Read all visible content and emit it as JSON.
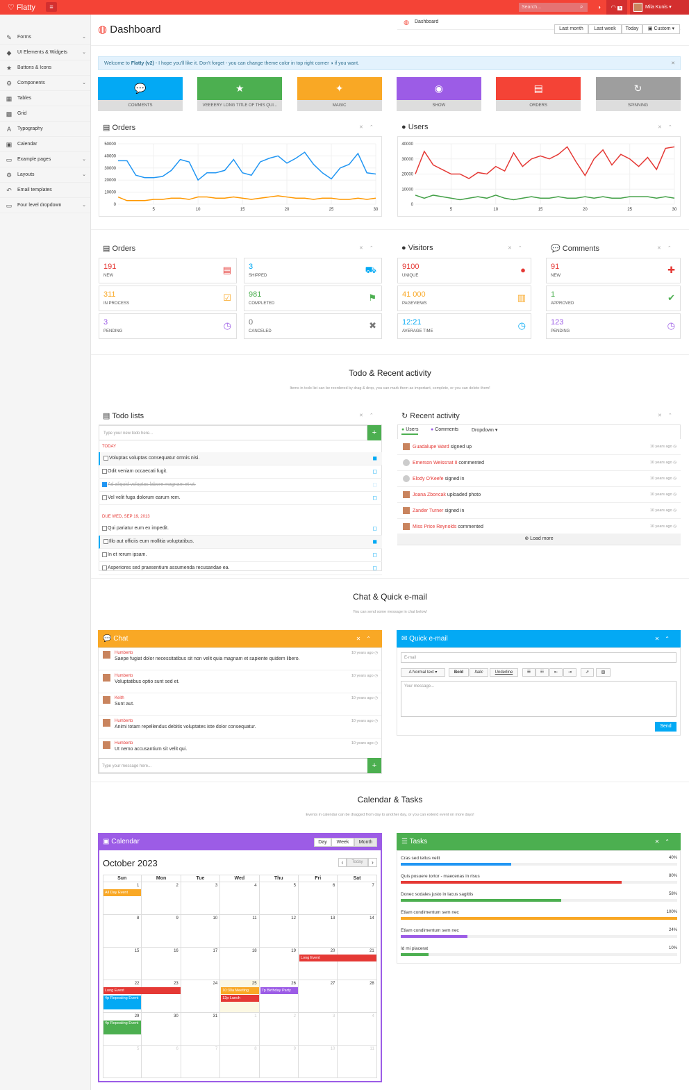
{
  "top": {
    "brand": "Flatty",
    "search_placeholder": "Search...",
    "rss_count": "5",
    "user": "Mila Kunis"
  },
  "sidebar": [
    {
      "label": "Dashboard",
      "icon": "dashboard-icon",
      "glyph": "◍",
      "active": true,
      "chev": false
    },
    {
      "label": "Forms",
      "icon": "edit-icon",
      "glyph": "✎",
      "chev": true
    },
    {
      "label": "UI Elements & Widgets",
      "icon": "tint-icon",
      "glyph": "◆",
      "chev": true
    },
    {
      "label": "Buttons & Icons",
      "icon": "star-icon",
      "glyph": "★",
      "chev": false
    },
    {
      "label": "Components",
      "icon": "cogs-icon",
      "glyph": "⚙",
      "chev": true
    },
    {
      "label": "Tables",
      "icon": "table-icon",
      "glyph": "▦",
      "chev": false
    },
    {
      "label": "Grid",
      "icon": "grid-icon",
      "glyph": "▩",
      "chev": false
    },
    {
      "label": "Typography",
      "icon": "font-icon",
      "glyph": "A",
      "chev": false
    },
    {
      "label": "Calendar",
      "icon": "calendar-icon",
      "glyph": "▣",
      "chev": false
    },
    {
      "label": "Example pages",
      "icon": "folder-icon",
      "glyph": "▭",
      "chev": true
    },
    {
      "label": "Layouts",
      "icon": "cog-icon",
      "glyph": "⚙",
      "chev": true
    },
    {
      "label": "Email templates",
      "icon": "reply-icon",
      "glyph": "↶",
      "chev": false
    },
    {
      "label": "Four level dropdown",
      "icon": "folder-open-icon",
      "glyph": "▭",
      "chev": true
    }
  ],
  "header": {
    "title": "Dashboard",
    "ranges": [
      "Last month",
      "Last week",
      "Today",
      "Custom ▾"
    ]
  },
  "alert": {
    "pre": "Welcome to ",
    "bold": "Flatty (v2)",
    "post": " - I hope you'll like it. Don't forget - you can change theme color in top right corner ◑ if you want."
  },
  "tiles": [
    {
      "label": "COMMENTS",
      "color": "#03a9f4",
      "icon": "comments-icon",
      "glyph": "💬"
    },
    {
      "label": "VEEEERY LONG TITLE OF THIS QUI...",
      "color": "#4caf50",
      "icon": "star-icon",
      "glyph": "★"
    },
    {
      "label": "MAGIC",
      "color": "#f9a825",
      "icon": "magic-icon",
      "glyph": "✦"
    },
    {
      "label": "SHOW",
      "color": "#9c5ce6",
      "icon": "eye-icon",
      "glyph": "◉"
    },
    {
      "label": "ORDERS",
      "color": "#f44336",
      "icon": "inbox-icon",
      "glyph": "▤"
    },
    {
      "label": "SPINNING",
      "color": "#9e9e9e",
      "icon": "refresh-icon",
      "glyph": "↻"
    }
  ],
  "panels": {
    "orders": "Orders",
    "users": "Users",
    "orders2": "Orders",
    "visitors": "Visitors",
    "comments": "Comments"
  },
  "chart_data": [
    {
      "type": "line",
      "title": "Orders",
      "xticks": [
        5,
        10,
        15,
        20,
        25,
        30
      ],
      "yticks": [
        0,
        10000,
        20000,
        30000,
        40000,
        50000
      ],
      "ylim": [
        0,
        50000
      ],
      "xlim": [
        1,
        30
      ],
      "series": [
        {
          "color": "#2196f3",
          "values": [
            36000,
            36000,
            24000,
            22000,
            22000,
            23000,
            28000,
            37000,
            35000,
            20000,
            26000,
            26000,
            28000,
            37000,
            26000,
            24000,
            35000,
            38000,
            40000,
            34000,
            38000,
            43000,
            33000,
            26000,
            21000,
            30000,
            33000,
            42000,
            26000,
            25000
          ]
        },
        {
          "color": "#ff9800",
          "values": [
            6000,
            3000,
            3000,
            3000,
            4000,
            4000,
            5000,
            5000,
            4000,
            6000,
            6000,
            5000,
            5000,
            6000,
            5000,
            4000,
            5000,
            6000,
            7000,
            6000,
            5000,
            5000,
            4000,
            5000,
            5000,
            4000,
            4000,
            5000,
            4000,
            5000
          ]
        }
      ]
    },
    {
      "type": "line",
      "title": "Users",
      "xticks": [
        5,
        10,
        15,
        20,
        25,
        30
      ],
      "yticks": [
        0,
        10000,
        20000,
        30000,
        40000
      ],
      "ylim": [
        0,
        40000
      ],
      "xlim": [
        1,
        30
      ],
      "series": [
        {
          "color": "#e53935",
          "values": [
            20000,
            35000,
            26000,
            23000,
            20000,
            20000,
            17000,
            21000,
            20000,
            25000,
            22000,
            34000,
            25000,
            30000,
            32000,
            30000,
            33000,
            38000,
            28000,
            19000,
            30000,
            36000,
            26000,
            33000,
            30000,
            25000,
            31000,
            23000,
            37000,
            38000
          ]
        },
        {
          "color": "#43a047",
          "values": [
            6000,
            4000,
            6000,
            5000,
            4000,
            3000,
            4000,
            5000,
            4000,
            6000,
            4000,
            3000,
            4000,
            5000,
            4000,
            4000,
            5000,
            4000,
            4000,
            5000,
            4000,
            5000,
            4000,
            4000,
            5000,
            5000,
            5000,
            4000,
            5000,
            4000
          ]
        }
      ]
    }
  ],
  "stats": {
    "orders": [
      {
        "value": "191",
        "label": "NEW",
        "color": "#e53935",
        "icon": "inbox-icon",
        "glyph": "▤"
      },
      {
        "value": "3",
        "label": "SHIPPED",
        "color": "#03a9f4",
        "icon": "truck-icon",
        "glyph": "⛟"
      },
      {
        "value": "311",
        "label": "IN PROCESS",
        "color": "#f9a825",
        "icon": "check-square-icon",
        "glyph": "☑"
      },
      {
        "value": "981",
        "label": "COMPLETED",
        "color": "#4caf50",
        "icon": "flag-icon",
        "glyph": "⚑"
      },
      {
        "value": "3",
        "label": "PENDING",
        "color": "#9c5ce6",
        "icon": "clock-icon",
        "glyph": "◷"
      },
      {
        "value": "0",
        "label": "CANCELED",
        "color": "#777777",
        "icon": "remove-icon",
        "glyph": "✖"
      }
    ],
    "visitors": [
      {
        "value": "9100",
        "label": "UNIQUE",
        "color": "#e53935",
        "icon": "user-icon",
        "glyph": "●"
      },
      {
        "value": "41 000",
        "label": "PAGEVIEWS",
        "color": "#f9a825",
        "icon": "book-icon",
        "glyph": "▥"
      },
      {
        "value": "12:21",
        "label": "AVERAGE TIME",
        "color": "#03a9f4",
        "icon": "clock-icon",
        "glyph": "◷"
      }
    ],
    "comments": [
      {
        "value": "91",
        "label": "NEW",
        "color": "#e53935",
        "icon": "plus-icon",
        "glyph": "✚"
      },
      {
        "value": "1",
        "label": "APPROVED",
        "color": "#4caf50",
        "icon": "check-icon",
        "glyph": "✔"
      },
      {
        "value": "123",
        "label": "PENDING",
        "color": "#9c5ce6",
        "icon": "clock-icon",
        "glyph": "◷"
      }
    ]
  },
  "todo_section": {
    "title": "Todo & Recent activity",
    "sub": "Items in todo list can be reordered by drag & drop, you can mark them as important, complete, or you can delete them!"
  },
  "todo": {
    "title": "Todo lists",
    "placeholder": "Type your new todo here...",
    "groups": [
      {
        "label": "TODAY",
        "items": [
          {
            "text": "Voluptas voluptas consequatur omnis nisi.",
            "hl": true,
            "done": false,
            "checked": false
          },
          {
            "text": "Odit veniam occaecati fugit.",
            "hl": false,
            "done": false,
            "checked": false
          },
          {
            "text": "Ad aliquid voluptas labore magnam et ut.",
            "hl": false,
            "done": true,
            "checked": true
          },
          {
            "text": "Vel velit fuga dolorum earum rem.",
            "hl": false,
            "done": false,
            "checked": false
          }
        ]
      },
      {
        "label": "DUE WED, SEP 19, 2013",
        "items": [
          {
            "text": "Qui pariatur eum ex impedit.",
            "hl": false,
            "done": false,
            "checked": false
          },
          {
            "text": "Illo aut officiis eum mollitia voluptatibus.",
            "hl": true,
            "done": false,
            "checked": false
          },
          {
            "text": "In et rerum ipsam.",
            "hl": false,
            "done": false,
            "checked": false
          },
          {
            "text": "Asperiores sed praesentium assumenda recusandae ea.",
            "hl": false,
            "done": false,
            "checked": false
          }
        ]
      }
    ]
  },
  "activity": {
    "title": "Recent activity",
    "tabs": [
      "Users",
      "Comments",
      "Dropdown ▾"
    ],
    "items": [
      {
        "name": "Guadalupe Ward",
        "action": "signed up",
        "time": "10 years ago",
        "photo": true
      },
      {
        "name": "Emerson Weissnat II",
        "action": "commented",
        "time": "10 years ago",
        "photo": false
      },
      {
        "name": "Elody O'Keefe",
        "action": "signed in",
        "time": "10 years ago",
        "photo": false
      },
      {
        "name": "Joana Zboncak",
        "action": "uploaded photo",
        "time": "10 years ago",
        "photo": true
      },
      {
        "name": "Zander Turner",
        "action": "signed in",
        "time": "10 years ago",
        "photo": true
      },
      {
        "name": "Miss Price Reynolds",
        "action": "commented",
        "time": "10 years ago",
        "photo": true
      }
    ],
    "load_more": "Load more"
  },
  "chat_section": {
    "title": "Chat & Quick e-mail",
    "sub": "You can send some message in chat below!"
  },
  "chat": {
    "title": "Chat",
    "placeholder": "Type your message here...",
    "messages": [
      {
        "name": "Humberto",
        "text": "Saepe fugiat dolor necessitatibus sit non velit quia magnam et sapiente quidem libero.",
        "time": "10 years ago"
      },
      {
        "name": "Humberto",
        "text": "Voluptatibus optio sunt sed et.",
        "time": "10 years ago"
      },
      {
        "name": "Keith",
        "text": "Sunt aut.",
        "time": "10 years ago"
      },
      {
        "name": "Humberto",
        "text": "Animi totam repellendus debitis voluptates iste dolor consequatur.",
        "time": "10 years ago"
      },
      {
        "name": "Humberto",
        "text": "Ut nemo accusantium sit velit qui.",
        "time": "10 years ago"
      }
    ]
  },
  "email": {
    "title": "Quick e-mail",
    "email_placeholder": "E-mail",
    "message_placeholder": "Your message...",
    "toolbar": [
      "A Normal text ▾",
      "Bold",
      "Italic",
      "Underline",
      "☰",
      "☷",
      "⇤",
      "⇥",
      "⇗",
      "▨"
    ],
    "send": "Send"
  },
  "cal_section": {
    "title": "Calendar & Tasks",
    "sub": "Events in calendar can be dragged from day to another day, or you can extend event on more days!"
  },
  "calendar": {
    "title": "Calendar",
    "views": [
      "Day",
      "Week",
      "Month"
    ],
    "month": "October 2023",
    "today_btn": "Today",
    "days": [
      "Sun",
      "Mon",
      "Tue",
      "Wed",
      "Thu",
      "Fri",
      "Sat"
    ],
    "weeks": [
      [
        1,
        2,
        3,
        4,
        5,
        6,
        7
      ],
      [
        8,
        9,
        10,
        11,
        12,
        13,
        14
      ],
      [
        15,
        16,
        17,
        18,
        19,
        20,
        21
      ],
      [
        22,
        23,
        24,
        25,
        26,
        27,
        28
      ],
      [
        29,
        30,
        31,
        1,
        2,
        3,
        4
      ],
      [
        5,
        6,
        7,
        8,
        9,
        10,
        11
      ]
    ],
    "events": [
      {
        "label": "All Day Event",
        "color": "#f9a825"
      },
      {
        "label": "Long Event",
        "color": "#e53935"
      },
      {
        "label": "Long Event",
        "color": "#e53935"
      },
      {
        "label": "4p Repeating Event",
        "color": "#03a9f4"
      },
      {
        "label": "10:30a Meeting",
        "color": "#f9a825"
      },
      {
        "label": "12p Lunch",
        "color": "#e53935"
      },
      {
        "label": "7p Birthday Party",
        "color": "#9c5ce6"
      },
      {
        "label": "4p Repeating Event",
        "color": "#4caf50"
      }
    ]
  },
  "tasks": {
    "title": "Tasks",
    "items": [
      {
        "name": "Cras sed tellus velit",
        "pct": 40,
        "pct_label": "40%",
        "color": "#2196f3"
      },
      {
        "name": "Quis posuere tortor - maecenas in risus",
        "pct": 80,
        "pct_label": "80%",
        "color": "#e53935"
      },
      {
        "name": "Donec sodales justo in lacus sagittis",
        "pct": 58,
        "pct_label": "58%",
        "color": "#4caf50"
      },
      {
        "name": "Etiam condimentum sem nec",
        "pct": 100,
        "pct_label": "100%",
        "color": "#f9a825"
      },
      {
        "name": "Etiam condimentum sem nec",
        "pct": 24,
        "pct_label": "24%",
        "color": "#9c5ce6"
      },
      {
        "name": "Id mi placerat",
        "pct": 10,
        "pct_label": "10%",
        "color": "#4caf50"
      }
    ]
  }
}
